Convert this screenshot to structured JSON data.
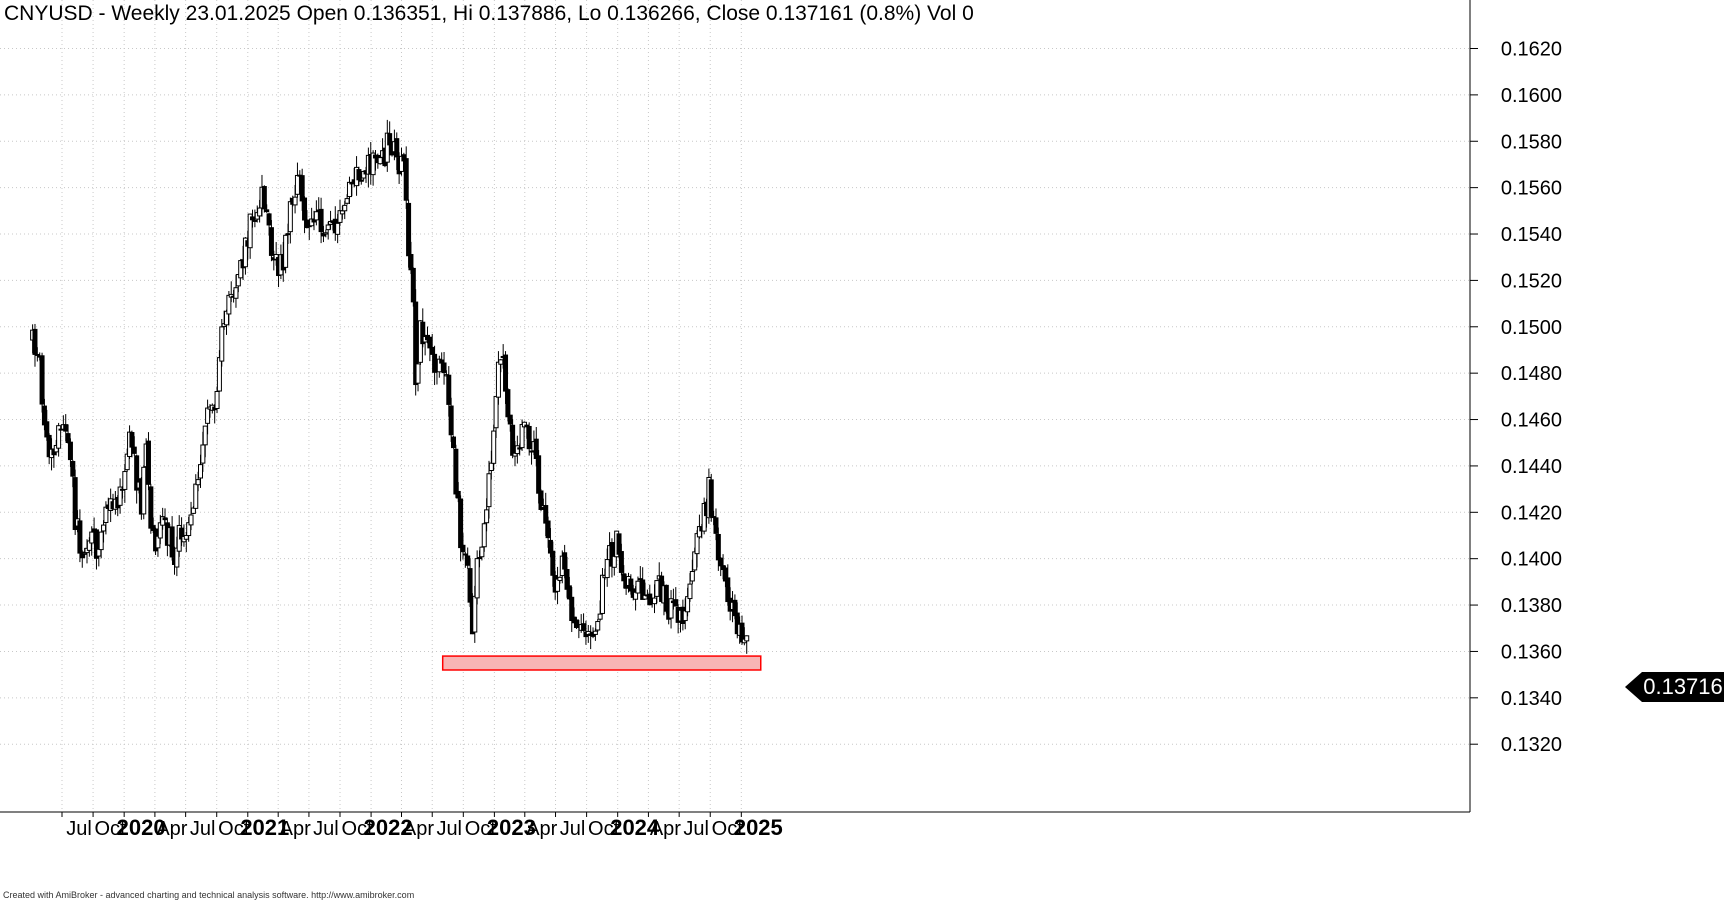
{
  "header": {
    "title": "CNYUSD - Weekly 23.01.2025 Open 0.136351, Hi 0.137886, Lo 0.136266, Close 0.137161 (0.8%) Vol 0"
  },
  "footer": {
    "text": "Created with AmiBroker - advanced charting and technical analysis software. http://www.amibroker.com"
  },
  "last_price_label": "0.13716",
  "colors": {
    "candle": "#000000",
    "grid": "#c8c8c8",
    "support_zone_fill": "#f8b4b4",
    "support_zone_border": "#ff0000"
  },
  "chart_data": {
    "type": "candlestick",
    "symbol": "CNYUSD",
    "interval": "Weekly",
    "x_range": [
      "2019-04",
      "2025-01-23"
    ],
    "ylim": [
      0.131,
      0.1635
    ],
    "y_ticks": [
      "0.1620",
      "0.1600",
      "0.1580",
      "0.1560",
      "0.1540",
      "0.1520",
      "0.1500",
      "0.1480",
      "0.1460",
      "0.1440",
      "0.1420",
      "0.1400",
      "0.1380",
      "0.1360",
      "0.1340",
      "0.1320"
    ],
    "x_ticks": [
      {
        "label": "Jul",
        "date": "2019-07-01",
        "bold": false
      },
      {
        "label": "Oct",
        "date": "2019-10-01",
        "bold": false
      },
      {
        "label": "2020",
        "date": "2020-01-01",
        "bold": true
      },
      {
        "label": "Apr",
        "date": "2020-04-01",
        "bold": false
      },
      {
        "label": "Jul",
        "date": "2020-07-01",
        "bold": false
      },
      {
        "label": "Oct",
        "date": "2020-10-01",
        "bold": false
      },
      {
        "label": "2021",
        "date": "2021-01-01",
        "bold": true
      },
      {
        "label": "Apr",
        "date": "2021-04-01",
        "bold": false
      },
      {
        "label": "Jul",
        "date": "2021-07-01",
        "bold": false
      },
      {
        "label": "Oct",
        "date": "2021-10-01",
        "bold": false
      },
      {
        "label": "2022",
        "date": "2022-01-01",
        "bold": true
      },
      {
        "label": "Apr",
        "date": "2022-04-01",
        "bold": false
      },
      {
        "label": "Jul",
        "date": "2022-07-01",
        "bold": false
      },
      {
        "label": "Oct",
        "date": "2022-10-01",
        "bold": false
      },
      {
        "label": "2023",
        "date": "2023-01-01",
        "bold": true
      },
      {
        "label": "Apr",
        "date": "2023-04-01",
        "bold": false
      },
      {
        "label": "Jul",
        "date": "2023-07-01",
        "bold": false
      },
      {
        "label": "Oct",
        "date": "2023-10-01",
        "bold": false
      },
      {
        "label": "2024",
        "date": "2024-01-01",
        "bold": true
      },
      {
        "label": "Apr",
        "date": "2024-04-01",
        "bold": false
      },
      {
        "label": "Jul",
        "date": "2024-07-01",
        "bold": false
      },
      {
        "label": "Oct",
        "date": "2024-10-01",
        "bold": false
      },
      {
        "label": "2025",
        "date": "2025-01-01",
        "bold": true
      }
    ],
    "grid": true,
    "last_close": 0.13716,
    "support_zone": {
      "start": "2022-08-01",
      "end": "2025-01-23",
      "low": 0.1352,
      "high": 0.1358
    },
    "price_path": [
      [
        "2019-04-05",
        0.1494
      ],
      [
        "2019-04-26",
        0.1485
      ],
      [
        "2019-05-10",
        0.146
      ],
      [
        "2019-05-24",
        0.1448
      ],
      [
        "2019-06-14",
        0.1448
      ],
      [
        "2019-06-28",
        0.1456
      ],
      [
        "2019-07-19",
        0.1455
      ],
      [
        "2019-08-09",
        0.1418
      ],
      [
        "2019-08-30",
        0.1398
      ],
      [
        "2019-09-20",
        0.141
      ],
      [
        "2019-10-11",
        0.1405
      ],
      [
        "2019-10-25",
        0.1412
      ],
      [
        "2019-11-15",
        0.1427
      ],
      [
        "2019-12-06",
        0.142
      ],
      [
        "2019-12-27",
        0.1434
      ],
      [
        "2020-01-17",
        0.1456
      ],
      [
        "2020-01-31",
        0.144
      ],
      [
        "2020-02-21",
        0.1425
      ],
      [
        "2020-03-06",
        0.1446
      ],
      [
        "2020-03-20",
        0.141
      ],
      [
        "2020-04-03",
        0.1404
      ],
      [
        "2020-04-24",
        0.1414
      ],
      [
        "2020-05-15",
        0.141
      ],
      [
        "2020-05-29",
        0.14
      ],
      [
        "2020-06-12",
        0.1412
      ],
      [
        "2020-07-03",
        0.1414
      ],
      [
        "2020-07-24",
        0.1427
      ],
      [
        "2020-08-14",
        0.144
      ],
      [
        "2020-09-04",
        0.1464
      ],
      [
        "2020-09-25",
        0.1468
      ],
      [
        "2020-10-16",
        0.1494
      ],
      [
        "2020-11-06",
        0.1512
      ],
      [
        "2020-11-27",
        0.152
      ],
      [
        "2020-12-18",
        0.153
      ],
      [
        "2021-01-08",
        0.1546
      ],
      [
        "2021-01-29",
        0.1548
      ],
      [
        "2021-02-12",
        0.1556
      ],
      [
        "2021-03-05",
        0.154
      ],
      [
        "2021-03-26",
        0.1526
      ],
      [
        "2021-04-16",
        0.153
      ],
      [
        "2021-05-07",
        0.1548
      ],
      [
        "2021-05-28",
        0.1568
      ],
      [
        "2021-06-18",
        0.1548
      ],
      [
        "2021-07-09",
        0.1545
      ],
      [
        "2021-08-06",
        0.1546
      ],
      [
        "2021-08-27",
        0.1539
      ],
      [
        "2021-09-17",
        0.1546
      ],
      [
        "2021-10-08",
        0.1552
      ],
      [
        "2021-10-29",
        0.1564
      ],
      [
        "2021-11-19",
        0.1565
      ],
      [
        "2021-12-10",
        0.1568
      ],
      [
        "2021-12-31",
        0.1572
      ],
      [
        "2022-01-14",
        0.1574
      ],
      [
        "2022-02-04",
        0.1572
      ],
      [
        "2022-02-25",
        0.1582
      ],
      [
        "2022-03-11",
        0.1578
      ],
      [
        "2022-03-25",
        0.1571
      ],
      [
        "2022-04-08",
        0.1572
      ],
      [
        "2022-04-22",
        0.1536
      ],
      [
        "2022-05-06",
        0.151
      ],
      [
        "2022-05-13",
        0.1478
      ],
      [
        "2022-05-27",
        0.15
      ],
      [
        "2022-06-10",
        0.1494
      ],
      [
        "2022-06-24",
        0.1494
      ],
      [
        "2022-07-15",
        0.1481
      ],
      [
        "2022-08-05",
        0.1482
      ],
      [
        "2022-08-19",
        0.1465
      ],
      [
        "2022-09-02",
        0.1445
      ],
      [
        "2022-09-23",
        0.141
      ],
      [
        "2022-10-07",
        0.1404
      ],
      [
        "2022-10-28",
        0.1372
      ],
      [
        "2022-11-11",
        0.14
      ],
      [
        "2022-12-02",
        0.1414
      ],
      [
        "2022-12-16",
        0.1434
      ],
      [
        "2022-12-30",
        0.145
      ],
      [
        "2023-01-13",
        0.1485
      ],
      [
        "2023-01-27",
        0.1482
      ],
      [
        "2023-02-10",
        0.1466
      ],
      [
        "2023-03-03",
        0.1442
      ],
      [
        "2023-03-17",
        0.1452
      ],
      [
        "2023-04-07",
        0.1455
      ],
      [
        "2023-04-21",
        0.145
      ],
      [
        "2023-05-05",
        0.144
      ],
      [
        "2023-05-26",
        0.1418
      ],
      [
        "2023-06-16",
        0.1398
      ],
      [
        "2023-06-30",
        0.138
      ],
      [
        "2023-07-21",
        0.14
      ],
      [
        "2023-08-11",
        0.1378
      ],
      [
        "2023-08-25",
        0.137
      ],
      [
        "2023-09-15",
        0.137
      ],
      [
        "2023-10-06",
        0.1366
      ],
      [
        "2023-10-27",
        0.1368
      ],
      [
        "2023-11-10",
        0.1376
      ],
      [
        "2023-11-24",
        0.1398
      ],
      [
        "2023-12-15",
        0.1402
      ],
      [
        "2023-12-29",
        0.1408
      ],
      [
        "2024-01-19",
        0.139
      ],
      [
        "2024-02-09",
        0.1388
      ],
      [
        "2024-03-01",
        0.1389
      ],
      [
        "2024-03-22",
        0.138
      ],
      [
        "2024-04-12",
        0.1378
      ],
      [
        "2024-05-03",
        0.1388
      ],
      [
        "2024-05-24",
        0.138
      ],
      [
        "2024-06-14",
        0.1376
      ],
      [
        "2024-07-05",
        0.1372
      ],
      [
        "2024-07-26",
        0.138
      ],
      [
        "2024-08-09",
        0.1398
      ],
      [
        "2024-08-30",
        0.1414
      ],
      [
        "2024-09-20",
        0.1424
      ],
      [
        "2024-09-27",
        0.143
      ],
      [
        "2024-10-11",
        0.1412
      ],
      [
        "2024-10-25",
        0.1402
      ],
      [
        "2024-11-08",
        0.1393
      ],
      [
        "2024-11-22",
        0.138
      ],
      [
        "2024-12-13",
        0.1374
      ],
      [
        "2024-12-27",
        0.137
      ],
      [
        "2025-01-10",
        0.1362
      ],
      [
        "2025-01-23",
        0.13716
      ]
    ]
  }
}
